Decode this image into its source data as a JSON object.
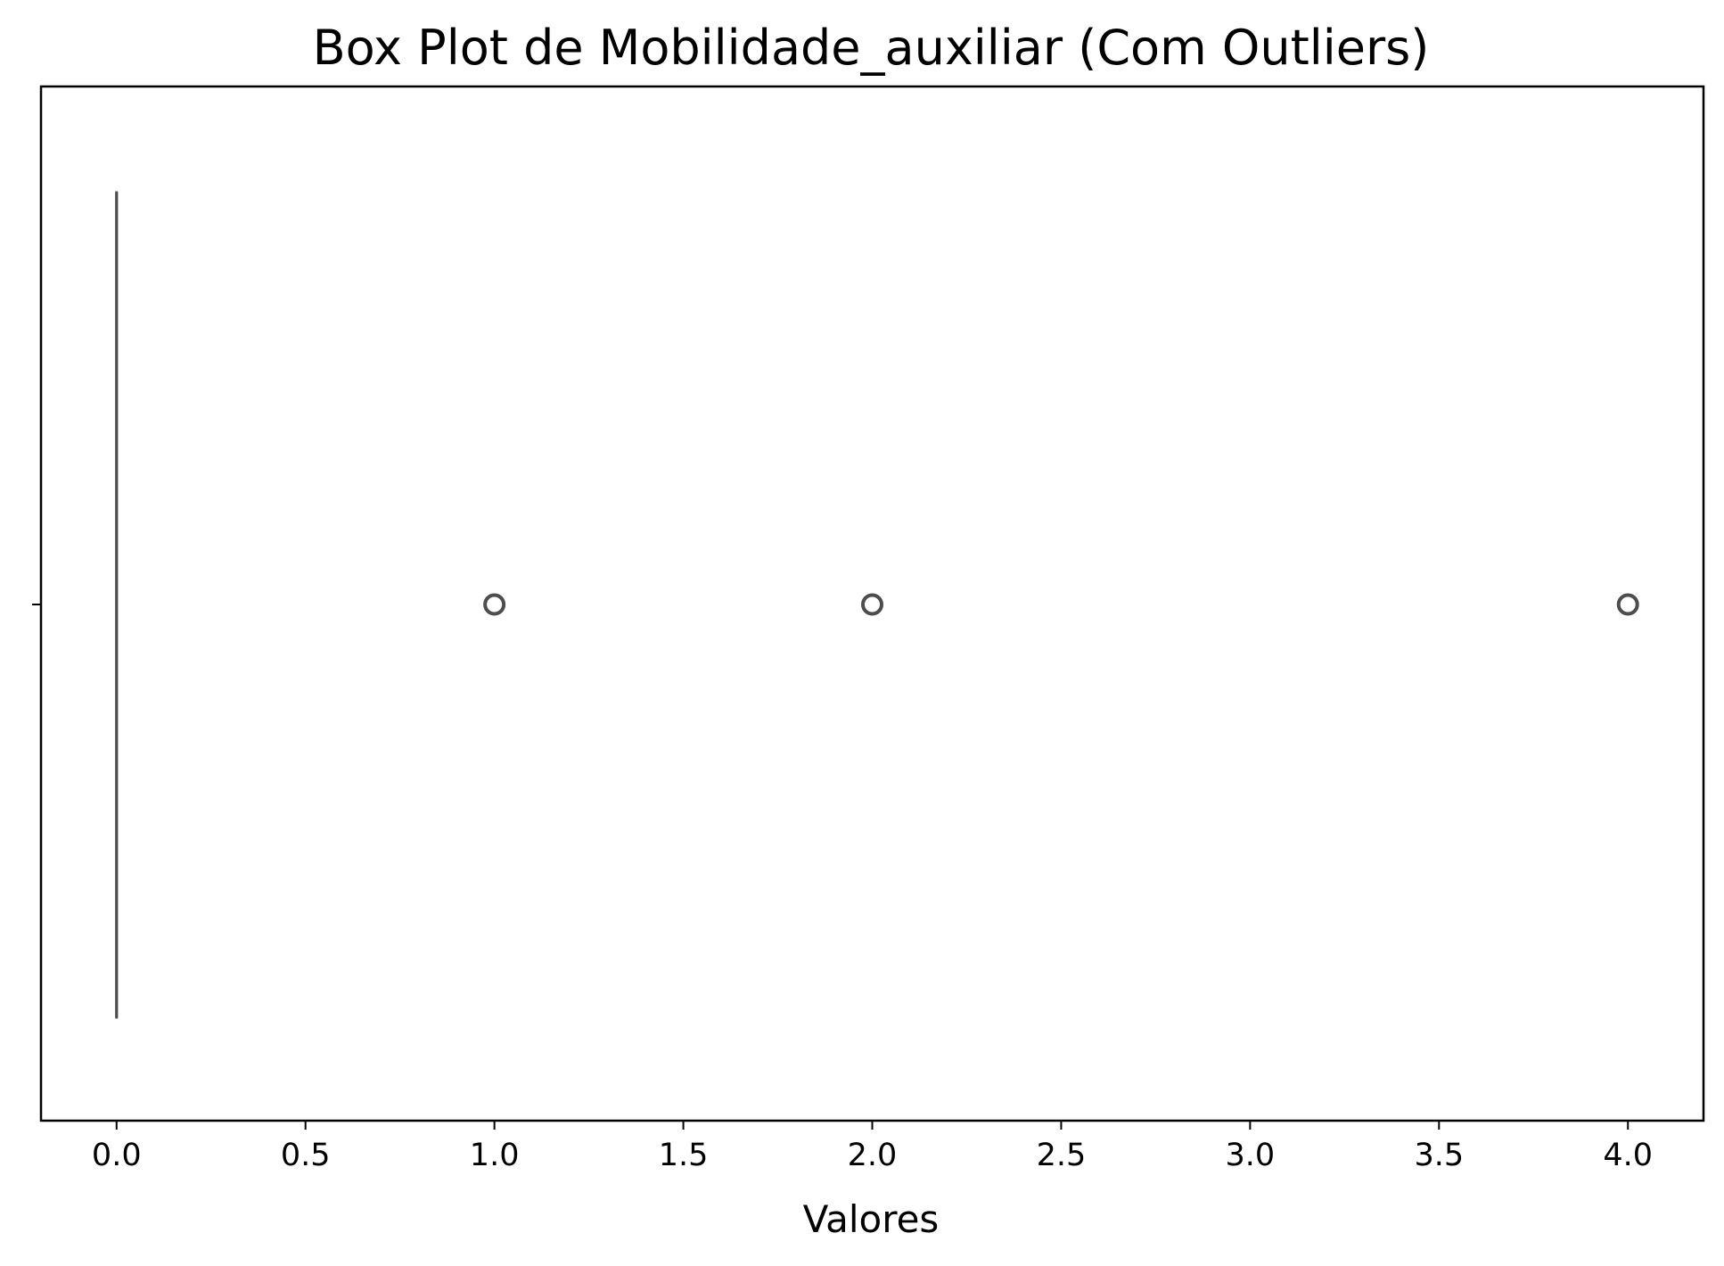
{
  "chart_data": {
    "type": "box",
    "title": "Box Plot de Mobilidade_auxiliar (Com Outliers)",
    "xlabel": "Valores",
    "ylabel": "",
    "orientation": "horizontal",
    "xlim": [
      -0.2,
      4.2
    ],
    "x_ticks": [
      0.0,
      0.5,
      1.0,
      1.5,
      2.0,
      2.5,
      3.0,
      3.5,
      4.0
    ],
    "x_tick_labels": [
      "0.0",
      "0.5",
      "1.0",
      "1.5",
      "2.0",
      "2.5",
      "3.0",
      "3.5",
      "4.0"
    ],
    "box": {
      "min": 0.0,
      "q1": 0.0,
      "median": 0.0,
      "q3": 0.0,
      "max": 0.0
    },
    "outliers": [
      1.0,
      2.0,
      4.0
    ],
    "grid": false,
    "colors": {
      "box_line": "#4d4d4d",
      "outlier_edge": "#4d4d4d",
      "axes": "#000000"
    }
  }
}
